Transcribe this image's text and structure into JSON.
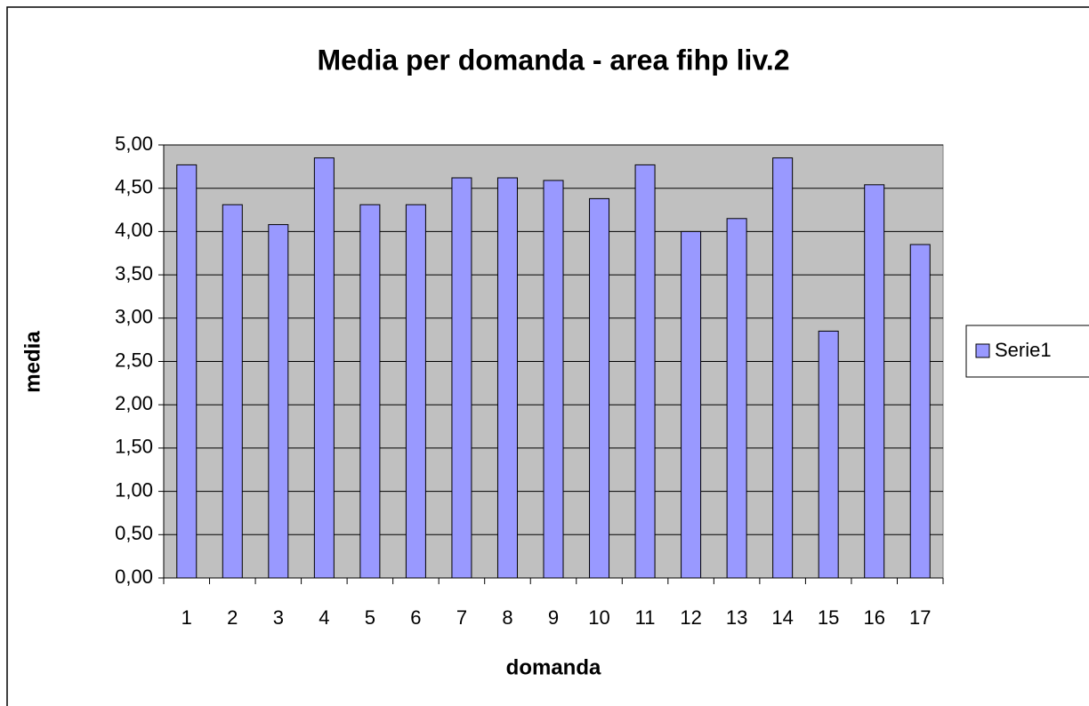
{
  "chart_data": {
    "type": "bar",
    "title": "Media per domanda - area fihp liv.2",
    "x_label": "domanda",
    "y_label": "media",
    "categories": [
      "1",
      "2",
      "3",
      "4",
      "5",
      "6",
      "7",
      "8",
      "9",
      "10",
      "11",
      "12",
      "13",
      "14",
      "15",
      "16",
      "17"
    ],
    "series": [
      {
        "name": "Serie1",
        "color": "#9999ff",
        "values": [
          4.77,
          4.31,
          4.08,
          4.85,
          4.31,
          4.31,
          4.62,
          4.62,
          4.59,
          4.38,
          4.77,
          4.0,
          4.15,
          4.85,
          2.85,
          4.54,
          3.85
        ]
      }
    ],
    "ylim": [
      0,
      5
    ],
    "yticks": [
      {
        "value": 0,
        "label": "0,00"
      },
      {
        "value": 0.5,
        "label": "0,50"
      },
      {
        "value": 1,
        "label": "1,00"
      },
      {
        "value": 1.5,
        "label": "1,50"
      },
      {
        "value": 2,
        "label": "2,00"
      },
      {
        "value": 2.5,
        "label": "2,50"
      },
      {
        "value": 3,
        "label": "3,00"
      },
      {
        "value": 3.5,
        "label": "3,50"
      },
      {
        "value": 4,
        "label": "4,00"
      },
      {
        "value": 4.5,
        "label": "4,50"
      },
      {
        "value": 5,
        "label": "5,00"
      }
    ],
    "grid": true,
    "legend": "right"
  }
}
